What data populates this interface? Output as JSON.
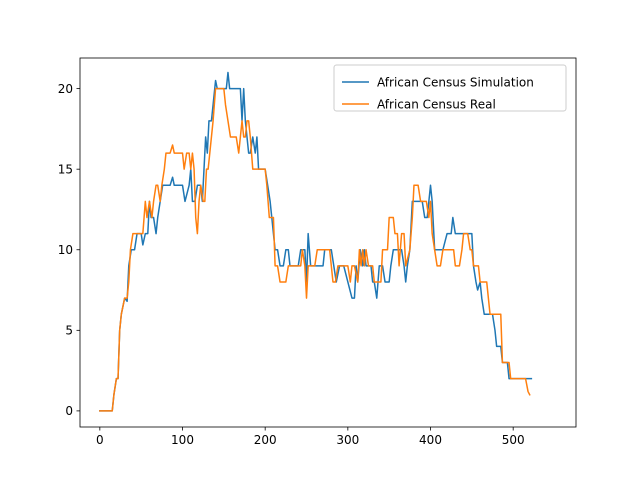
{
  "chart_data": {
    "type": "line",
    "title": "",
    "xlabel": "",
    "ylabel": "",
    "xlim": [
      -24,
      576
    ],
    "ylim": [
      -1,
      21.9
    ],
    "x_ticks": [
      0,
      100,
      200,
      300,
      400,
      500
    ],
    "y_ticks": [
      0,
      5,
      10,
      15,
      20
    ],
    "grid": false,
    "legend_position": "top-right",
    "series": [
      {
        "name": "African Census Simulation",
        "color": "#1f77b4",
        "points": [
          [
            0,
            0
          ],
          [
            15,
            0
          ],
          [
            17,
            1
          ],
          [
            20,
            2
          ],
          [
            22,
            2
          ],
          [
            24,
            5
          ],
          [
            26,
            6
          ],
          [
            30,
            7
          ],
          [
            33,
            6.8
          ],
          [
            35,
            9
          ],
          [
            38,
            10
          ],
          [
            42,
            10
          ],
          [
            45,
            11
          ],
          [
            50,
            11
          ],
          [
            52,
            10.3
          ],
          [
            55,
            11
          ],
          [
            58,
            11
          ],
          [
            60,
            13
          ],
          [
            62,
            12
          ],
          [
            65,
            12
          ],
          [
            68,
            11
          ],
          [
            70,
            12
          ],
          [
            73,
            13
          ],
          [
            76,
            14
          ],
          [
            80,
            14
          ],
          [
            85,
            14
          ],
          [
            88,
            14.5
          ],
          [
            90,
            14
          ],
          [
            95,
            14
          ],
          [
            100,
            14
          ],
          [
            103,
            13
          ],
          [
            108,
            14
          ],
          [
            110,
            15
          ],
          [
            112,
            13
          ],
          [
            115,
            13
          ],
          [
            118,
            14
          ],
          [
            122,
            14
          ],
          [
            124,
            13
          ],
          [
            126,
            15
          ],
          [
            128,
            17
          ],
          [
            130,
            16
          ],
          [
            132,
            18
          ],
          [
            135,
            18
          ],
          [
            137,
            19
          ],
          [
            140,
            20.5
          ],
          [
            142,
            20
          ],
          [
            145,
            20
          ],
          [
            150,
            20
          ],
          [
            153,
            20
          ],
          [
            155,
            21
          ],
          [
            157,
            20
          ],
          [
            160,
            20
          ],
          [
            165,
            20
          ],
          [
            170,
            20
          ],
          [
            172,
            18
          ],
          [
            174,
            20
          ],
          [
            176,
            18
          ],
          [
            178,
            17
          ],
          [
            180,
            16
          ],
          [
            182,
            16
          ],
          [
            185,
            17
          ],
          [
            188,
            16
          ],
          [
            190,
            17
          ],
          [
            192,
            15
          ],
          [
            195,
            15
          ],
          [
            200,
            15
          ],
          [
            203,
            14
          ],
          [
            206,
            13
          ],
          [
            208,
            12
          ],
          [
            210,
            11
          ],
          [
            212,
            10
          ],
          [
            215,
            10
          ],
          [
            218,
            9
          ],
          [
            222,
            9
          ],
          [
            225,
            10
          ],
          [
            228,
            10
          ],
          [
            230,
            9
          ],
          [
            235,
            9
          ],
          [
            240,
            9
          ],
          [
            243,
            10
          ],
          [
            245,
            10
          ],
          [
            248,
            10
          ],
          [
            250,
            8
          ],
          [
            252,
            11
          ],
          [
            255,
            9
          ],
          [
            260,
            9
          ],
          [
            265,
            9
          ],
          [
            270,
            9
          ],
          [
            272,
            10
          ],
          [
            275,
            10
          ],
          [
            280,
            10
          ],
          [
            283,
            9
          ],
          [
            286,
            8
          ],
          [
            290,
            9
          ],
          [
            295,
            9
          ],
          [
            300,
            8
          ],
          [
            305,
            7
          ],
          [
            308,
            7
          ],
          [
            310,
            9
          ],
          [
            312,
            8
          ],
          [
            315,
            10
          ],
          [
            318,
            9
          ],
          [
            320,
            10
          ],
          [
            322,
            9
          ],
          [
            325,
            9
          ],
          [
            328,
            9
          ],
          [
            330,
            8
          ],
          [
            332,
            8
          ],
          [
            335,
            7
          ],
          [
            338,
            9
          ],
          [
            342,
            9
          ],
          [
            345,
            8
          ],
          [
            348,
            8
          ],
          [
            350,
            8
          ],
          [
            352,
            9
          ],
          [
            355,
            10
          ],
          [
            360,
            10
          ],
          [
            365,
            10
          ],
          [
            368,
            9
          ],
          [
            370,
            8
          ],
          [
            372,
            9
          ],
          [
            375,
            10
          ],
          [
            378,
            13
          ],
          [
            380,
            13
          ],
          [
            385,
            13
          ],
          [
            390,
            13
          ],
          [
            393,
            12
          ],
          [
            396,
            12
          ],
          [
            398,
            13
          ],
          [
            400,
            14
          ],
          [
            402,
            13
          ],
          [
            405,
            10
          ],
          [
            408,
            10
          ],
          [
            412,
            10
          ],
          [
            415,
            10
          ],
          [
            420,
            11
          ],
          [
            425,
            11
          ],
          [
            427,
            12
          ],
          [
            430,
            11
          ],
          [
            435,
            11
          ],
          [
            440,
            11
          ],
          [
            445,
            11
          ],
          [
            450,
            11
          ],
          [
            452,
            9
          ],
          [
            455,
            8
          ],
          [
            457,
            7.5
          ],
          [
            460,
            8
          ],
          [
            462,
            7
          ],
          [
            465,
            6
          ],
          [
            470,
            6
          ],
          [
            475,
            6
          ],
          [
            478,
            5
          ],
          [
            480,
            4
          ],
          [
            485,
            4
          ],
          [
            487,
            3
          ],
          [
            490,
            3
          ],
          [
            493,
            3
          ],
          [
            495,
            2
          ],
          [
            500,
            2
          ],
          [
            510,
            2
          ],
          [
            522,
            2
          ]
        ]
      },
      {
        "name": "African Census Real",
        "color": "#ff7f0e",
        "points": [
          [
            0,
            0
          ],
          [
            15,
            0
          ],
          [
            17,
            1
          ],
          [
            20,
            2
          ],
          [
            22,
            2
          ],
          [
            24,
            5
          ],
          [
            26,
            6
          ],
          [
            30,
            7
          ],
          [
            33,
            7
          ],
          [
            35,
            8
          ],
          [
            37,
            10
          ],
          [
            40,
            11
          ],
          [
            45,
            11
          ],
          [
            50,
            11
          ],
          [
            52,
            11
          ],
          [
            55,
            13
          ],
          [
            57,
            12
          ],
          [
            60,
            13
          ],
          [
            63,
            12
          ],
          [
            65,
            13
          ],
          [
            68,
            14
          ],
          [
            70,
            14
          ],
          [
            73,
            13
          ],
          [
            75,
            14
          ],
          [
            78,
            15
          ],
          [
            80,
            16
          ],
          [
            85,
            16
          ],
          [
            88,
            16.5
          ],
          [
            90,
            16
          ],
          [
            95,
            16
          ],
          [
            100,
            16
          ],
          [
            102,
            15
          ],
          [
            105,
            16
          ],
          [
            108,
            16
          ],
          [
            110,
            15
          ],
          [
            112,
            16
          ],
          [
            114,
            15
          ],
          [
            116,
            12
          ],
          [
            118,
            11
          ],
          [
            120,
            13
          ],
          [
            122,
            14
          ],
          [
            125,
            13
          ],
          [
            127,
            13
          ],
          [
            129,
            15
          ],
          [
            131,
            15
          ],
          [
            133,
            16
          ],
          [
            135,
            17
          ],
          [
            137,
            18
          ],
          [
            140,
            20
          ],
          [
            145,
            20
          ],
          [
            150,
            20
          ],
          [
            152,
            19
          ],
          [
            155,
            18
          ],
          [
            158,
            17
          ],
          [
            160,
            17
          ],
          [
            163,
            17
          ],
          [
            165,
            17
          ],
          [
            168,
            16
          ],
          [
            170,
            17
          ],
          [
            172,
            18
          ],
          [
            174,
            17
          ],
          [
            176,
            17
          ],
          [
            178,
            18
          ],
          [
            180,
            18
          ],
          [
            182,
            17
          ],
          [
            185,
            15
          ],
          [
            190,
            15
          ],
          [
            195,
            15
          ],
          [
            200,
            15
          ],
          [
            202,
            14
          ],
          [
            205,
            12
          ],
          [
            210,
            12
          ],
          [
            212,
            9
          ],
          [
            215,
            9
          ],
          [
            218,
            8
          ],
          [
            222,
            8
          ],
          [
            225,
            8
          ],
          [
            228,
            9
          ],
          [
            230,
            9
          ],
          [
            235,
            9
          ],
          [
            238,
            9
          ],
          [
            240,
            9
          ],
          [
            243,
            9
          ],
          [
            245,
            10
          ],
          [
            248,
            9
          ],
          [
            250,
            7
          ],
          [
            252,
            9
          ],
          [
            255,
            9
          ],
          [
            260,
            9
          ],
          [
            263,
            10
          ],
          [
            268,
            10
          ],
          [
            272,
            10
          ],
          [
            275,
            10
          ],
          [
            278,
            10
          ],
          [
            280,
            9
          ],
          [
            282,
            8
          ],
          [
            285,
            8
          ],
          [
            288,
            9
          ],
          [
            292,
            9
          ],
          [
            295,
            9
          ],
          [
            300,
            9
          ],
          [
            303,
            8
          ],
          [
            305,
            9
          ],
          [
            308,
            9
          ],
          [
            312,
            8
          ],
          [
            314,
            10
          ],
          [
            316,
            9
          ],
          [
            318,
            10
          ],
          [
            320,
            9
          ],
          [
            322,
            10
          ],
          [
            325,
            9
          ],
          [
            328,
            9
          ],
          [
            330,
            9
          ],
          [
            332,
            8
          ],
          [
            335,
            8
          ],
          [
            340,
            8
          ],
          [
            342,
            10
          ],
          [
            345,
            10
          ],
          [
            348,
            10
          ],
          [
            350,
            12
          ],
          [
            355,
            12
          ],
          [
            357,
            11
          ],
          [
            360,
            11
          ],
          [
            362,
            9
          ],
          [
            365,
            11
          ],
          [
            368,
            11
          ],
          [
            370,
            9
          ],
          [
            375,
            10
          ],
          [
            378,
            12
          ],
          [
            380,
            14
          ],
          [
            385,
            14
          ],
          [
            388,
            13
          ],
          [
            390,
            13
          ],
          [
            395,
            13
          ],
          [
            398,
            12
          ],
          [
            400,
            13
          ],
          [
            402,
            11
          ],
          [
            405,
            10
          ],
          [
            408,
            9
          ],
          [
            412,
            9
          ],
          [
            415,
            10
          ],
          [
            420,
            10
          ],
          [
            425,
            10
          ],
          [
            428,
            10
          ],
          [
            430,
            9
          ],
          [
            435,
            9
          ],
          [
            438,
            10
          ],
          [
            440,
            11
          ],
          [
            445,
            11
          ],
          [
            448,
            10
          ],
          [
            450,
            10
          ],
          [
            452,
            9
          ],
          [
            455,
            9
          ],
          [
            458,
            9
          ],
          [
            460,
            8
          ],
          [
            465,
            8
          ],
          [
            468,
            8
          ],
          [
            470,
            7
          ],
          [
            472,
            6
          ],
          [
            475,
            6
          ],
          [
            480,
            6
          ],
          [
            485,
            6
          ],
          [
            487,
            3
          ],
          [
            490,
            3
          ],
          [
            495,
            3
          ],
          [
            497,
            2
          ],
          [
            500,
            2
          ],
          [
            505,
            2
          ],
          [
            510,
            2
          ],
          [
            515,
            2
          ],
          [
            518,
            1.2
          ],
          [
            520,
            1
          ]
        ]
      }
    ]
  }
}
